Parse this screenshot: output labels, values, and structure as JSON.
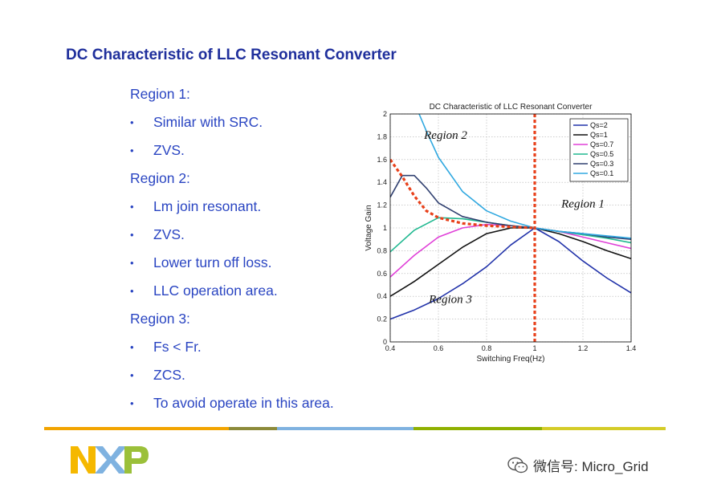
{
  "slide": {
    "title": "DC Characteristic of LLC Resonant Converter",
    "bullets": [
      {
        "kind": "heading",
        "text": "Region 1:"
      },
      {
        "kind": "bullet",
        "text": "Similar with SRC."
      },
      {
        "kind": "bullet",
        "text": "ZVS."
      },
      {
        "kind": "heading",
        "text": "Region 2:"
      },
      {
        "kind": "bullet",
        "text": "Lm join resonant."
      },
      {
        "kind": "bullet",
        "text": "ZVS."
      },
      {
        "kind": "bullet",
        "text": "Lower turn off loss."
      },
      {
        "kind": "bullet",
        "text": "LLC operation area."
      },
      {
        "kind": "heading",
        "text": "Region 3:"
      },
      {
        "kind": "bullet",
        "text": "Fs < Fr."
      },
      {
        "kind": "bullet",
        "text": "ZCS."
      },
      {
        "kind": "bullet",
        "text": "To avoid operate in this area."
      }
    ],
    "bullet_glyph": "•",
    "colors": {
      "title": "#1f2f9c",
      "text": "#2a45c2"
    }
  },
  "rule_colors": [
    "#f2a400",
    "#8c8a3a",
    "#7fb2e0",
    "#8fb000",
    "#d4cc28"
  ],
  "logo": {
    "text": "NXP",
    "colors": [
      "#f5b800",
      "#7fb2e0",
      "#9bc03a"
    ]
  },
  "watermark": {
    "icon": "wechat-icon",
    "text": "微信号: Micro_Grid"
  },
  "chart_data": {
    "type": "line",
    "title": "DC Characteristic of LLC Resonant Converter",
    "xlabel": "Switching Freq(Hz)",
    "ylabel": "Voltage Gain",
    "xlim": [
      0.4,
      1.4
    ],
    "ylim": [
      0,
      2
    ],
    "xticks": [
      "0.4",
      "0.6",
      "0.8",
      "1",
      "1.2",
      "1.4"
    ],
    "yticks": [
      "0",
      "0.2",
      "0.4",
      "0.6",
      "0.8",
      "1",
      "1.2",
      "1.4",
      "1.6",
      "1.8",
      "2"
    ],
    "grid": true,
    "legend_position": "top-right",
    "series": [
      {
        "name": "Qs=2",
        "color": "#2233aa",
        "x": [
          0.4,
          0.5,
          0.6,
          0.7,
          0.8,
          0.9,
          1.0,
          1.1,
          1.2,
          1.3,
          1.4
        ],
        "y": [
          0.2,
          0.28,
          0.38,
          0.51,
          0.66,
          0.85,
          1.0,
          0.88,
          0.71,
          0.56,
          0.43
        ]
      },
      {
        "name": "Qs=1",
        "color": "#111111",
        "x": [
          0.4,
          0.5,
          0.6,
          0.7,
          0.8,
          0.9,
          1.0,
          1.1,
          1.2,
          1.3,
          1.4
        ],
        "y": [
          0.4,
          0.53,
          0.68,
          0.83,
          0.95,
          1.0,
          1.0,
          0.95,
          0.88,
          0.8,
          0.73
        ]
      },
      {
        "name": "Qs=0.7",
        "color": "#e040d8",
        "x": [
          0.4,
          0.5,
          0.6,
          0.7,
          0.8,
          0.9,
          1.0,
          1.1,
          1.2,
          1.3,
          1.4
        ],
        "y": [
          0.57,
          0.76,
          0.92,
          1.0,
          1.03,
          1.02,
          1.0,
          0.97,
          0.92,
          0.87,
          0.82
        ]
      },
      {
        "name": "Qs=0.5",
        "color": "#20b890",
        "x": [
          0.4,
          0.5,
          0.6,
          0.7,
          0.8,
          0.9,
          1.0,
          1.1,
          1.2,
          1.3,
          1.4
        ],
        "y": [
          0.79,
          0.98,
          1.09,
          1.08,
          1.05,
          1.02,
          1.0,
          0.97,
          0.94,
          0.91,
          0.87
        ]
      },
      {
        "name": "Qs=0.3",
        "color": "#304070",
        "x": [
          0.4,
          0.45,
          0.5,
          0.55,
          0.6,
          0.7,
          0.8,
          0.9,
          1.0,
          1.1,
          1.2,
          1.3,
          1.4
        ],
        "y": [
          1.27,
          1.46,
          1.46,
          1.35,
          1.22,
          1.1,
          1.05,
          1.02,
          1.0,
          0.97,
          0.95,
          0.92,
          0.9
        ]
      },
      {
        "name": "Qs=0.1",
        "color": "#30a8e0",
        "x": [
          0.52,
          0.55,
          0.6,
          0.7,
          0.8,
          0.9,
          1.0,
          1.1,
          1.2,
          1.3,
          1.4
        ],
        "y": [
          2.0,
          1.85,
          1.62,
          1.32,
          1.15,
          1.06,
          1.0,
          0.97,
          0.95,
          0.93,
          0.91
        ]
      }
    ],
    "boundaries": [
      {
        "name": "peak-gain-locus",
        "color": "#e8401a",
        "x": [
          0.4,
          0.45,
          0.5,
          0.55,
          0.6,
          0.7,
          0.8,
          0.9,
          1.0
        ],
        "y": [
          1.6,
          1.45,
          1.28,
          1.15,
          1.09,
          1.04,
          1.02,
          1.01,
          1.0
        ]
      },
      {
        "name": "resonant-frequency-line",
        "color": "#e8401a",
        "x": [
          1.0,
          1.0
        ],
        "y": [
          0,
          2
        ]
      }
    ],
    "annotations": [
      {
        "text": "Region 2",
        "x": 0.63,
        "y": 1.78
      },
      {
        "text": "Region 1",
        "x": 1.2,
        "y": 1.18
      },
      {
        "text": "Region 3",
        "x": 0.65,
        "y": 0.34
      }
    ]
  }
}
